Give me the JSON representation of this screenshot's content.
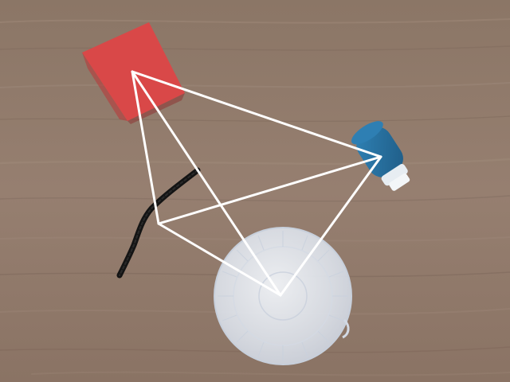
{
  "scene": {
    "surface": "wooden-table",
    "objects": [
      {
        "name": "red-cube",
        "color": "#d94a4a"
      },
      {
        "name": "blue-bottle",
        "color": "#2a6f9e"
      },
      {
        "name": "black-rope",
        "color": "#1a1a1a"
      },
      {
        "name": "clear-plastic-lid",
        "color": "#e9edf4"
      }
    ],
    "overlay": {
      "name": "white-tetrahedron-wireframe",
      "color": "#ffffff"
    }
  },
  "colors": {
    "wood_base": "#8b7565",
    "wood_light": "#a18b7c",
    "wood_dark": "#6f5b4f"
  }
}
